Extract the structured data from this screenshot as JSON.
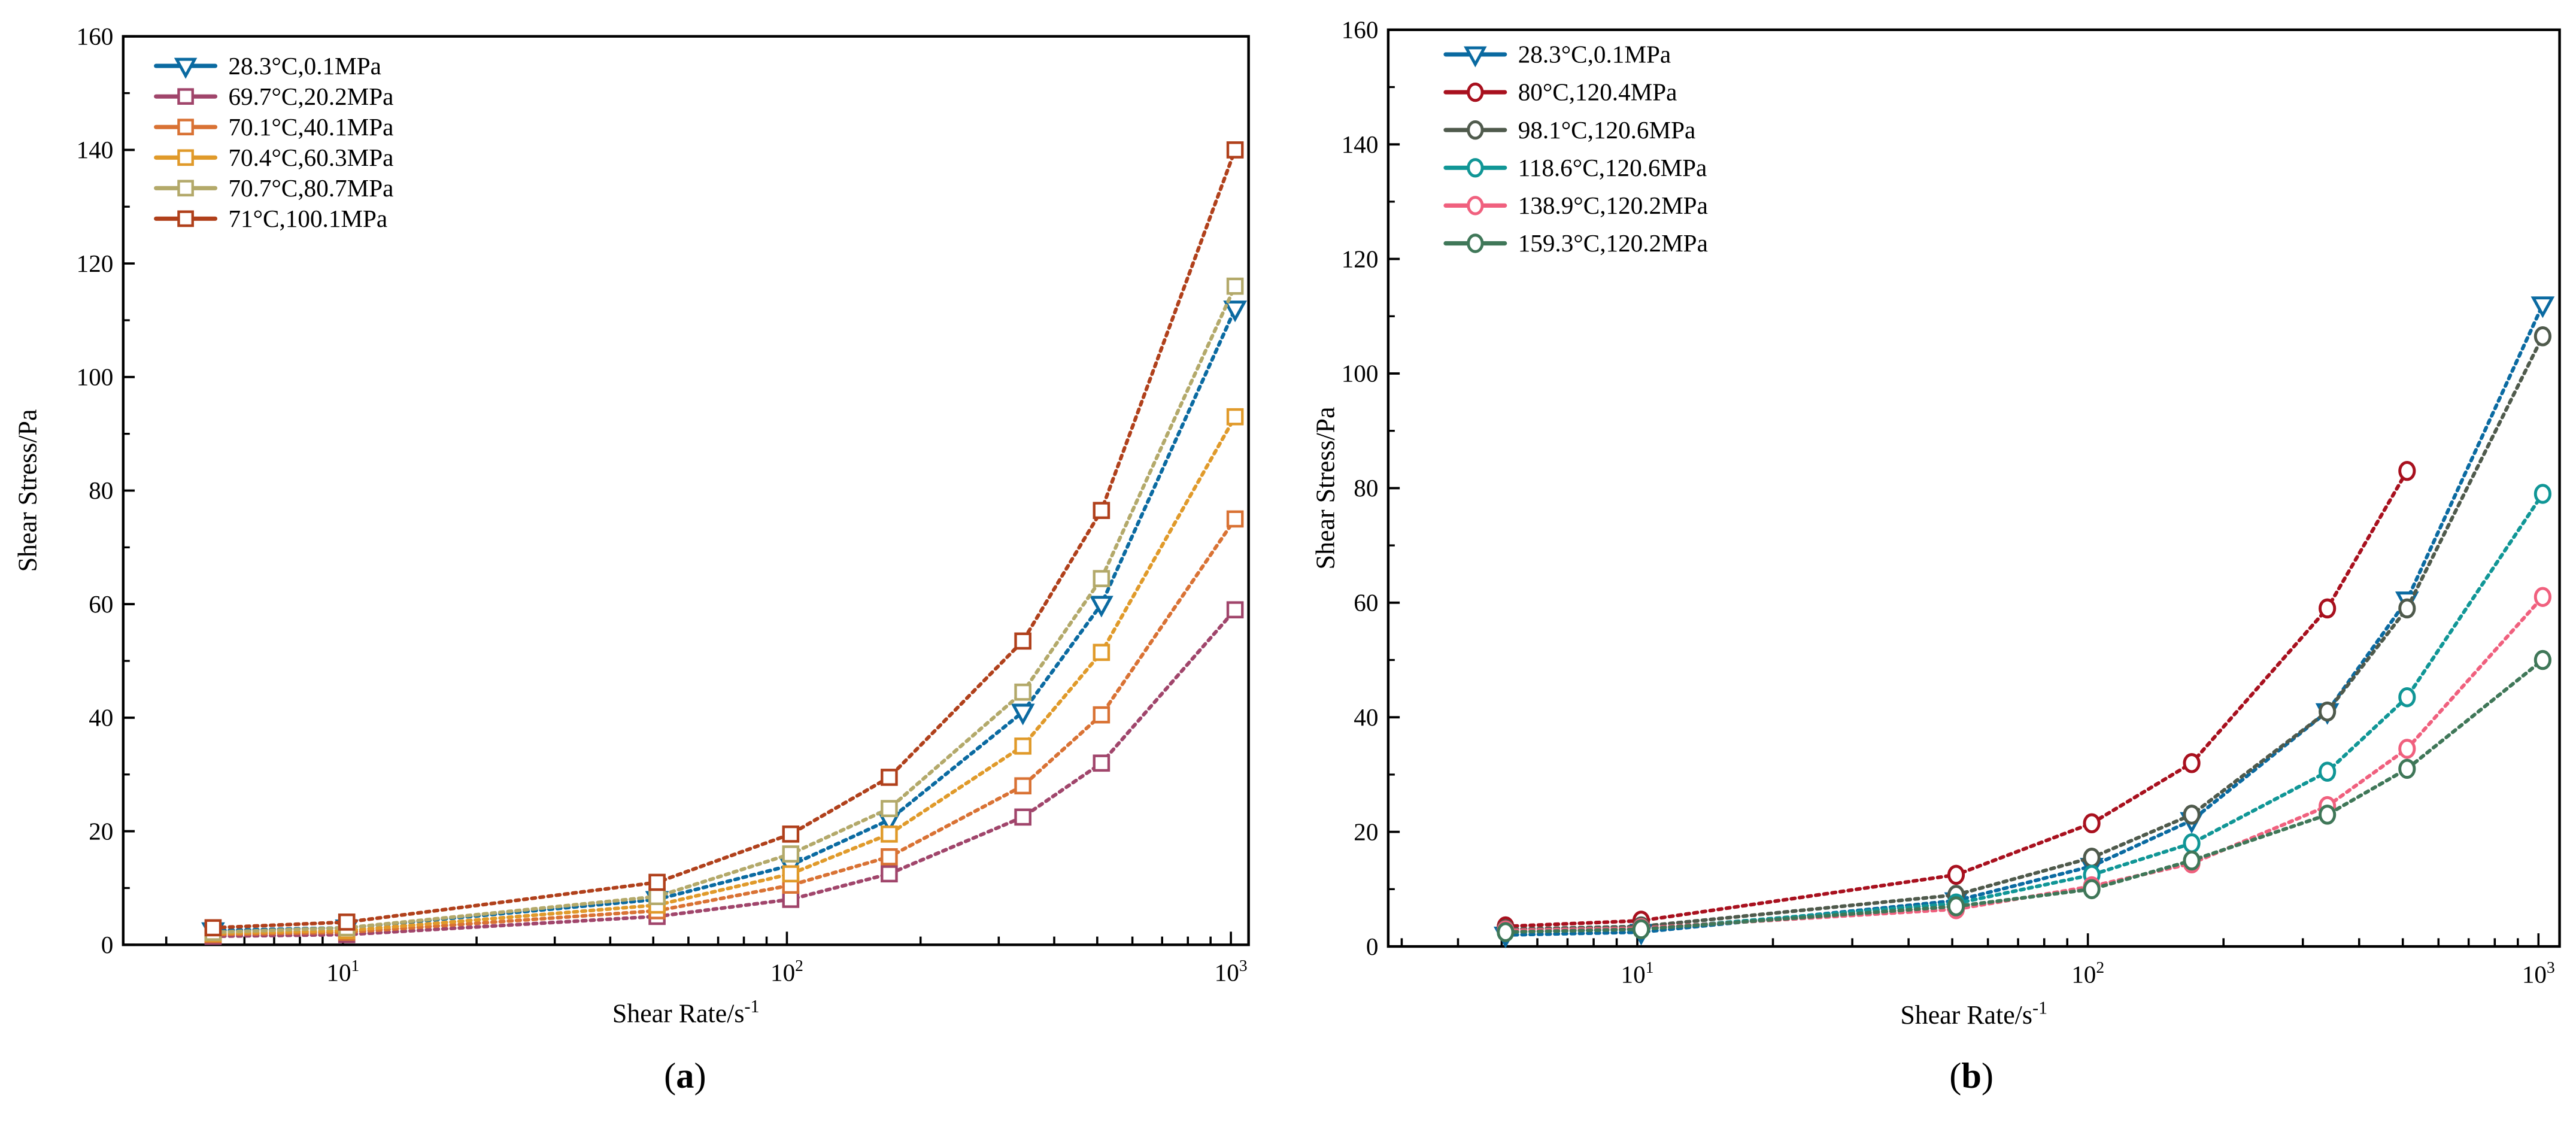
{
  "chart_data": [
    {
      "type": "line",
      "panel_label": "a",
      "xlabel": "Shear Rate/s",
      "xlabel_sup": "-1",
      "ylabel": "Shear Stress/Pa",
      "xscale": "log",
      "xlim": [
        3.2,
        1096
      ],
      "ylim": [
        0,
        160
      ],
      "yticks": [
        "0",
        "20",
        "40",
        "60",
        "80",
        "100",
        "120",
        "140",
        "160"
      ],
      "xticks": [
        {
          "base": "10",
          "exp": "1"
        },
        {
          "base": "10",
          "exp": "2"
        },
        {
          "base": "10",
          "exp": "3"
        }
      ],
      "legend_position": "top-left",
      "x": [
        5.1,
        10.2,
        51,
        102,
        170,
        340,
        511,
        1022
      ],
      "series": [
        {
          "name": "28.3°C,0.1MPa",
          "color": "#0a6aa1",
          "marker": "triangle-down",
          "values": [
            2.5,
            3,
            8,
            14,
            22,
            41,
            60,
            112
          ]
        },
        {
          "name": "69.7°C,20.2MPa",
          "color": "#a0456b",
          "marker": "square",
          "values": [
            1.5,
            1.8,
            5,
            8,
            12.5,
            22.5,
            32,
            59
          ]
        },
        {
          "name": "70.1°C,40.1MPa",
          "color": "#d97234",
          "marker": "square",
          "values": [
            1.8,
            2.2,
            6,
            10.5,
            15.5,
            28,
            40.5,
            75
          ]
        },
        {
          "name": "70.4°C,60.3MPa",
          "color": "#e09a2a",
          "marker": "square",
          "values": [
            2,
            2.5,
            7,
            12.5,
            19.5,
            35,
            51.5,
            93
          ]
        },
        {
          "name": "70.7°C,80.7MPa",
          "color": "#b3a96a",
          "marker": "square",
          "values": [
            2.2,
            3,
            8.5,
            16,
            24,
            44.5,
            64.5,
            116
          ]
        },
        {
          "name": "71°C,100.1MPa",
          "color": "#b0401b",
          "marker": "square",
          "values": [
            3,
            4,
            11,
            19.5,
            29.5,
            53.5,
            76.5,
            140
          ]
        }
      ]
    },
    {
      "type": "line",
      "panel_label": "b",
      "xlabel": "Shear Rate/s",
      "xlabel_sup": "-1",
      "ylabel": "Shear Stress/Pa",
      "xscale": "log",
      "xlim": [
        2.8,
        1114
      ],
      "ylim": [
        0,
        160
      ],
      "yticks": [
        "0",
        "20",
        "40",
        "60",
        "80",
        "100",
        "120",
        "140",
        "160"
      ],
      "xticks": [
        {
          "base": "10",
          "exp": "1"
        },
        {
          "base": "10",
          "exp": "2"
        },
        {
          "base": "10",
          "exp": "3"
        }
      ],
      "legend_position": "top-left",
      "x": [
        5.1,
        10.2,
        51,
        102,
        170,
        340,
        511,
        1022
      ],
      "series": [
        {
          "name": "28.3°C,0.1MPa",
          "color": "#0a6aa1",
          "marker": "triangle-down",
          "values": [
            2,
            2.5,
            8,
            14,
            22,
            41,
            60.5,
            112
          ]
        },
        {
          "name": "80°C,120.4MPa",
          "color": "#a8101e",
          "marker": "circle",
          "values": [
            3.5,
            4.5,
            12.5,
            21.5,
            32,
            59,
            83,
            null
          ]
        },
        {
          "name": "98.1°C,120.6MPa",
          "color": "#4f5a4c",
          "marker": "circle",
          "values": [
            3,
            3.5,
            9,
            15.5,
            23,
            41,
            59,
            106.5
          ]
        },
        {
          "name": "118.6°C,120.6MPa",
          "color": "#109696",
          "marker": "circle",
          "values": [
            2.5,
            3,
            7.5,
            12.5,
            18,
            30.5,
            43.5,
            79
          ]
        },
        {
          "name": "138.9°C,120.2MPa",
          "color": "#f0607e",
          "marker": "circle",
          "values": [
            2.8,
            3.2,
            6.5,
            10.5,
            14.5,
            24.5,
            34.5,
            61
          ]
        },
        {
          "name": "159.3°C,120.2MPa",
          "color": "#3f7758",
          "marker": "circle",
          "values": [
            2.5,
            3,
            7,
            10,
            15,
            23,
            31,
            50
          ]
        }
      ]
    }
  ]
}
